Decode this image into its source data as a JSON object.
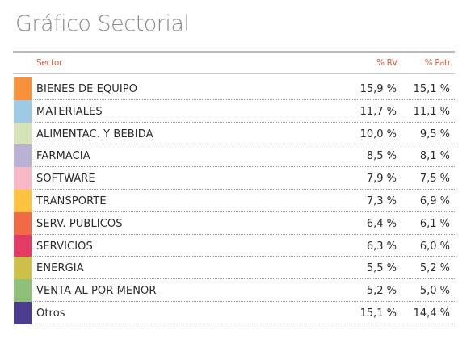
{
  "title": "Gráfico Sectorial",
  "headers": {
    "sector": "Sector",
    "rv": "% RV",
    "patr": "% Patr."
  },
  "rows": [
    {
      "name": "BIENES DE EQUIPO",
      "rv": "15,9 %",
      "patr": "15,1 %",
      "color": "#f7923a"
    },
    {
      "name": "MATERIALES",
      "rv": "11,7 %",
      "patr": "11,1 %",
      "color": "#9ecae6"
    },
    {
      "name": "ALIMENTAC. Y BEBIDA",
      "rv": "10,0 %",
      "patr": "9,5 %",
      "color": "#d5e3b8"
    },
    {
      "name": "FARMACIA",
      "rv": "8,5 %",
      "patr": "8,1 %",
      "color": "#bbb1d4"
    },
    {
      "name": "SOFTWARE",
      "rv": "7,9 %",
      "patr": "7,5 %",
      "color": "#f7b8c6"
    },
    {
      "name": "TRANSPORTE",
      "rv": "7,3 %",
      "patr": "6,9 %",
      "color": "#fbc33e"
    },
    {
      "name": "SERV. PUBLICOS",
      "rv": "6,4 %",
      "patr": "6,1 %",
      "color": "#ef6a45"
    },
    {
      "name": "SERVICIOS",
      "rv": "6,3 %",
      "patr": "6,0 %",
      "color": "#e33c64"
    },
    {
      "name": "ENERGIA",
      "rv": "5,5 %",
      "patr": "5,2 %",
      "color": "#cdc04a"
    },
    {
      "name": "VENTA AL POR MENOR",
      "rv": "5,2 %",
      "patr": "5,0 %",
      "color": "#8fc07a"
    },
    {
      "name": "Otros",
      "rv": "15,1 %",
      "patr": "14,4 %",
      "color": "#4c3d8e"
    }
  ]
}
